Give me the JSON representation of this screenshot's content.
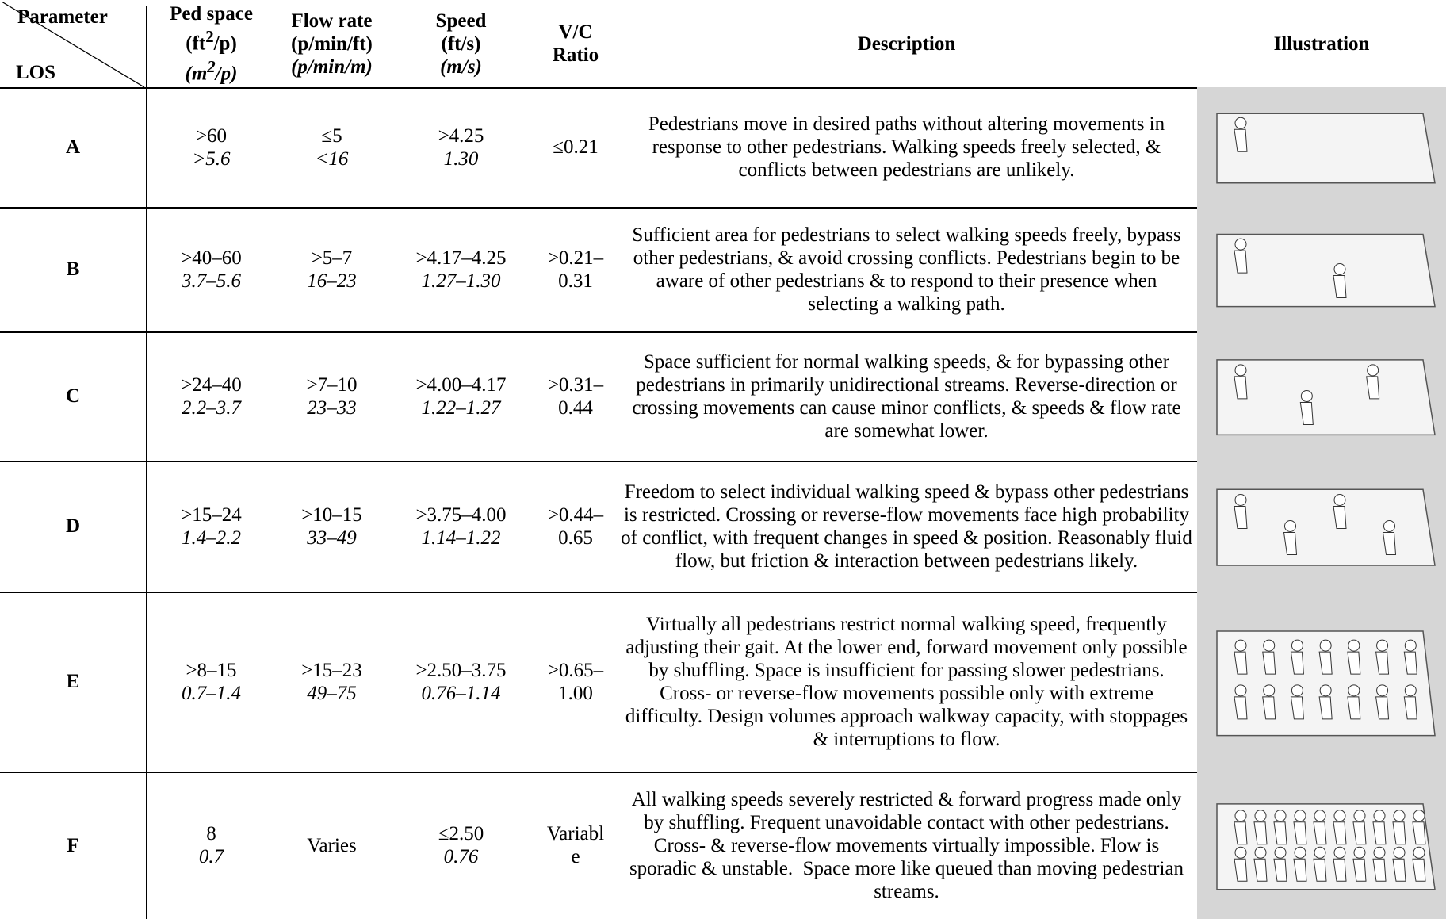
{
  "header": {
    "parameter": "Parameter",
    "los": "LOS",
    "ped_space": {
      "title": "Ped space",
      "unit_pre": "(ft",
      "unit_sup": "2",
      "unit_post": "/p)",
      "metric_pre": "(m",
      "metric_sup": "2",
      "metric_post": "/p)"
    },
    "flow_rate": {
      "title": "Flow rate",
      "unit": "(p/min/ft)",
      "metric": "(p/min/m)"
    },
    "speed": {
      "title": "Speed",
      "unit": "(ft/s)",
      "metric": "(m/s)"
    },
    "vc": {
      "line1": "V/C",
      "line2": "Ratio"
    },
    "description": "Description",
    "illustration": "Illustration"
  },
  "rows": [
    {
      "los": "A",
      "ped_space": [
        ">60",
        ">5.6"
      ],
      "flow_rate": [
        "≤5",
        "<16"
      ],
      "speed": [
        ">4.25",
        "1.30"
      ],
      "vc": [
        "≤0.21"
      ],
      "description": "Pedestrians move in desired paths without altering movements in response to other pedestrians. Walking speeds freely selected, & conflicts between pedestrians are unlikely."
    },
    {
      "los": "B",
      "ped_space": [
        ">40–60",
        "3.7–5.6"
      ],
      "flow_rate": [
        ">5–7",
        "16–23"
      ],
      "speed": [
        ">4.17–4.25",
        "1.27–1.30"
      ],
      "vc": [
        ">0.21–",
        "0.31"
      ],
      "description": "Sufficient area for pedestrians to select walking speeds freely, bypass other pedestrians, & avoid crossing conflicts. Pedestrians begin to be aware of other pedestrians & to respond to their presence when selecting a walking path."
    },
    {
      "los": "C",
      "ped_space": [
        ">24–40",
        "2.2–3.7"
      ],
      "flow_rate": [
        ">7–10",
        "23–33"
      ],
      "speed": [
        ">4.00–4.17",
        "1.22–1.27"
      ],
      "vc": [
        ">0.31–",
        "0.44"
      ],
      "description": "Space sufficient for normal walking speeds, & for bypassing other pedestrians in primarily unidirectional streams. Reverse-direction or crossing movements can cause minor conflicts, & speeds & flow rate are somewhat lower."
    },
    {
      "los": "D",
      "ped_space": [
        ">15–24",
        "1.4–2.2"
      ],
      "flow_rate": [
        ">10–15",
        "33–49"
      ],
      "speed": [
        ">3.75–4.00",
        "1.14–1.22"
      ],
      "vc": [
        ">0.44–",
        "0.65"
      ],
      "description": "Freedom to select individual walking speed & bypass other pedestrians is restricted. Crossing or reverse-flow movements face high probability of conflict, with frequent changes in speed & position. Reasonably fluid flow, but friction & interaction between pedestrians likely."
    },
    {
      "los": "E",
      "ped_space": [
        ">8–15",
        "0.7–1.4"
      ],
      "flow_rate": [
        ">15–23",
        "49–75"
      ],
      "speed": [
        ">2.50–3.75",
        "0.76–1.14"
      ],
      "vc": [
        ">0.65–",
        "1.00"
      ],
      "description": "Virtually all pedestrians restrict normal walking speed, frequently adjusting their gait. At the lower end, forward movement only possible by shuffling. Space is insufficient for passing slower pedestrians. Cross- or reverse-flow movements possible only with extreme difficulty. Design volumes approach walkway capacity, with stoppages & interruptions to flow."
    },
    {
      "los": "F",
      "ped_space": [
        "8",
        "0.7"
      ],
      "flow_rate": [
        "Varies"
      ],
      "speed": [
        "≤2.50",
        "0.76"
      ],
      "vc": [
        "Variabl",
        "e"
      ],
      "description": "All walking speeds severely restricted & forward progress made only by shuffling. Frequent unavoidable contact with other pedestrians.  Cross- & reverse-flow movements virtually impossible. Flow is sporadic & unstable.  Space more like queued than moving pedestrian streams."
    }
  ]
}
